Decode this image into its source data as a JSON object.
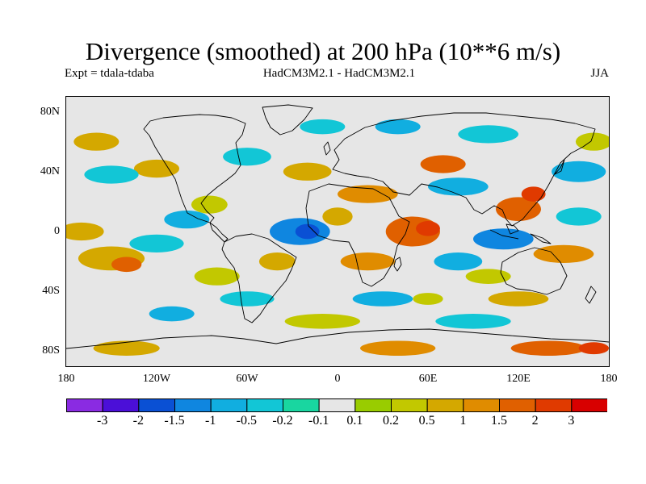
{
  "title": "Divergence (smoothed) at 200 hPa (10**6 m/s)",
  "subtitle_left": "Expt = tdala-tdaba",
  "subtitle_center": "HadCM3M2.1 - HadCM3M2.1",
  "subtitle_right": "JJA",
  "map": {
    "lat_range": [
      -90,
      90
    ],
    "lon_range": [
      -180,
      180
    ],
    "background_color": "#e6e6e6",
    "y_labels": [
      {
        "lat": 80,
        "text": "80N"
      },
      {
        "lat": 40,
        "text": "40N"
      },
      {
        "lat": 0,
        "text": "0"
      },
      {
        "lat": -40,
        "text": "40S"
      },
      {
        "lat": -80,
        "text": "80S"
      }
    ],
    "x_labels": [
      {
        "lon": -180,
        "text": "180"
      },
      {
        "lon": -120,
        "text": "120W"
      },
      {
        "lon": -60,
        "text": "60W"
      },
      {
        "lon": 0,
        "text": "0"
      },
      {
        "lon": 60,
        "text": "60E"
      },
      {
        "lon": 120,
        "text": "120E"
      },
      {
        "lon": 180,
        "text": "180"
      }
    ],
    "blobs": [
      {
        "lon": -150,
        "lat": -18,
        "rx": 22,
        "ry": 8,
        "level": 3
      },
      {
        "lon": -140,
        "lat": -22,
        "rx": 10,
        "ry": 5,
        "level": 5
      },
      {
        "lon": -120,
        "lat": -8,
        "rx": 18,
        "ry": 6,
        "level": -2
      },
      {
        "lon": -100,
        "lat": 8,
        "rx": 15,
        "ry": 6,
        "level": -3
      },
      {
        "lon": -85,
        "lat": 18,
        "rx": 12,
        "ry": 6,
        "level": 2
      },
      {
        "lon": -25,
        "lat": 0,
        "rx": 20,
        "ry": 9,
        "level": -4
      },
      {
        "lon": -20,
        "lat": 0,
        "rx": 8,
        "ry": 5,
        "level": -5
      },
      {
        "lon": 20,
        "lat": -20,
        "rx": 18,
        "ry": 6,
        "level": 4
      },
      {
        "lon": 50,
        "lat": 0,
        "rx": 18,
        "ry": 10,
        "level": 5
      },
      {
        "lon": 60,
        "lat": 2,
        "rx": 8,
        "ry": 5,
        "level": 6
      },
      {
        "lon": 80,
        "lat": -20,
        "rx": 16,
        "ry": 6,
        "level": -3
      },
      {
        "lon": 110,
        "lat": -5,
        "rx": 20,
        "ry": 7,
        "level": -4
      },
      {
        "lon": 120,
        "lat": 15,
        "rx": 15,
        "ry": 8,
        "level": 5
      },
      {
        "lon": 130,
        "lat": 25,
        "rx": 8,
        "ry": 5,
        "level": 6
      },
      {
        "lon": 150,
        "lat": -15,
        "rx": 20,
        "ry": 6,
        "level": 4
      },
      {
        "lon": -120,
        "lat": 42,
        "rx": 15,
        "ry": 6,
        "level": 3
      },
      {
        "lon": -60,
        "lat": 50,
        "rx": 16,
        "ry": 6,
        "level": -2
      },
      {
        "lon": -20,
        "lat": 40,
        "rx": 16,
        "ry": 6,
        "level": 3
      },
      {
        "lon": 20,
        "lat": 25,
        "rx": 20,
        "ry": 6,
        "level": 4
      },
      {
        "lon": 80,
        "lat": 30,
        "rx": 20,
        "ry": 6,
        "level": -3
      },
      {
        "lon": 70,
        "lat": 45,
        "rx": 15,
        "ry": 6,
        "level": 5
      },
      {
        "lon": 100,
        "lat": 65,
        "rx": 20,
        "ry": 6,
        "level": -2
      },
      {
        "lon": -150,
        "lat": 38,
        "rx": 18,
        "ry": 6,
        "level": -2
      },
      {
        "lon": 160,
        "lat": 40,
        "rx": 18,
        "ry": 7,
        "level": -3
      },
      {
        "lon": -60,
        "lat": -45,
        "rx": 18,
        "ry": 5,
        "level": -2
      },
      {
        "lon": 30,
        "lat": -45,
        "rx": 20,
        "ry": 5,
        "level": -3
      },
      {
        "lon": 120,
        "lat": -45,
        "rx": 20,
        "ry": 5,
        "level": 3
      },
      {
        "lon": 140,
        "lat": -78,
        "rx": 25,
        "ry": 5,
        "level": 5
      },
      {
        "lon": 170,
        "lat": -78,
        "rx": 10,
        "ry": 4,
        "level": 6
      },
      {
        "lon": -140,
        "lat": -78,
        "rx": 22,
        "ry": 5,
        "level": 3
      },
      {
        "lon": 40,
        "lat": -78,
        "rx": 25,
        "ry": 5,
        "level": 4
      },
      {
        "lon": -10,
        "lat": -60,
        "rx": 25,
        "ry": 5,
        "level": 2
      },
      {
        "lon": 90,
        "lat": -60,
        "rx": 25,
        "ry": 5,
        "level": -2
      },
      {
        "lon": -110,
        "lat": -55,
        "rx": 15,
        "ry": 5,
        "level": -3
      },
      {
        "lon": -10,
        "lat": 70,
        "rx": 15,
        "ry": 5,
        "level": -2
      },
      {
        "lon": 40,
        "lat": 70,
        "rx": 15,
        "ry": 5,
        "level": -3
      },
      {
        "lon": -170,
        "lat": 0,
        "rx": 15,
        "ry": 6,
        "level": 3
      },
      {
        "lon": -40,
        "lat": -20,
        "rx": 12,
        "ry": 6,
        "level": 3
      },
      {
        "lon": 0,
        "lat": 10,
        "rx": 10,
        "ry": 6,
        "level": 3
      },
      {
        "lon": 100,
        "lat": -30,
        "rx": 15,
        "ry": 5,
        "level": 2
      },
      {
        "lon": 160,
        "lat": 10,
        "rx": 15,
        "ry": 6,
        "level": -2
      },
      {
        "lon": -160,
        "lat": 60,
        "rx": 15,
        "ry": 6,
        "level": 3
      },
      {
        "lon": 170,
        "lat": 60,
        "rx": 12,
        "ry": 6,
        "level": 2
      },
      {
        "lon": -80,
        "lat": -30,
        "rx": 15,
        "ry": 6,
        "level": 2
      },
      {
        "lon": 60,
        "lat": -45,
        "rx": 10,
        "ry": 4,
        "level": 2
      }
    ]
  },
  "colorbar": {
    "colors": [
      "#8a2be2",
      "#4b0fd8",
      "#0a50d4",
      "#0f86e0",
      "#11aee0",
      "#12c6d6",
      "#19d6a0",
      "#e6e6e6",
      "#99cc00",
      "#c2c800",
      "#d4a800",
      "#e08c00",
      "#e06000",
      "#e03a00",
      "#d80000"
    ],
    "labels": [
      "-3",
      "-2",
      "-1.5",
      "-1",
      "-0.5",
      "-0.2",
      "-0.1",
      "0.1",
      "0.2",
      "0.5",
      "1",
      "1.5",
      "2",
      "3"
    ]
  }
}
